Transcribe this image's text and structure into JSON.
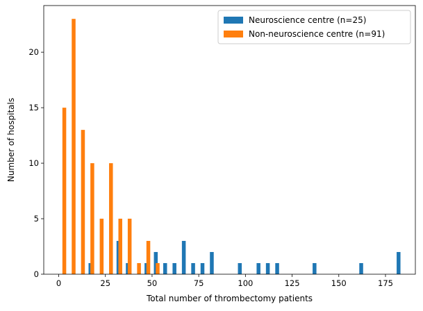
{
  "chart_data": {
    "type": "bar",
    "title": "",
    "xlabel": "Total number of thrombectomy patients",
    "ylabel": "Number of hospitals",
    "xlim": [
      -8,
      191
    ],
    "ylim": [
      0,
      24.2
    ],
    "xticks": [
      0,
      25,
      50,
      75,
      100,
      125,
      150,
      175
    ],
    "yticks": [
      0,
      5,
      10,
      15,
      20
    ],
    "grid": false,
    "legend": "top-right",
    "series": [
      {
        "name": "Neuroscience centre (n=25)",
        "color": "#1f77b4",
        "x": [
          17,
          32,
          37,
          47,
          52,
          57,
          62,
          67,
          72,
          77,
          82,
          97,
          107,
          112,
          117,
          137,
          162,
          182
        ],
        "values": [
          1,
          3,
          1,
          1,
          2,
          1,
          1,
          3,
          1,
          1,
          2,
          1,
          1,
          1,
          1,
          1,
          1,
          2
        ]
      },
      {
        "name": "Non-neuroscience centre (n=91)",
        "color": "#ff7f0e",
        "x": [
          3,
          8,
          13,
          18,
          23,
          28,
          33,
          38,
          43,
          48,
          53
        ],
        "values": [
          15,
          23,
          13,
          10,
          5,
          10,
          5,
          5,
          1,
          3,
          1
        ]
      }
    ]
  }
}
